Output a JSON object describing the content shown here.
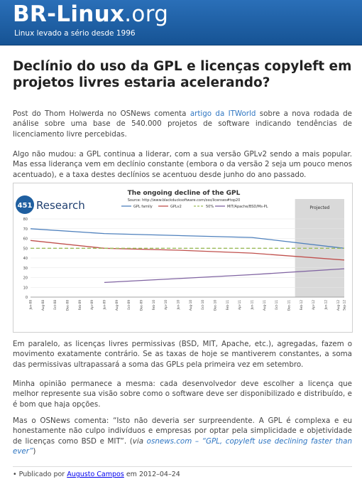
{
  "header": {
    "logo_name": "BR-Linux",
    "logo_tld": ".org",
    "tagline": "Linux levado a sério desde 1996"
  },
  "post": {
    "title": "Declínio do uso da GPL e licenças copyleft em projetos livres estaria acelerando?",
    "p1_a": "Post do Thom Holwerda no OSNews comenta ",
    "p1_link": "artigo da ITWorld",
    "p1_b": " sobre a nova rodada de análise sobre uma base de 540.000 projetos de software indicando tendências de licenciamento livre percebidas.",
    "p2": "Algo não mudou: a GPL continua a liderar, com a sua versão GPLv2 sendo a mais popular. Mas essa liderança vem em declínio constante (embora o da versão 2 seja um pouco menos acentuado), e a taxa destes declínios se acentuou desde junho do ano passado.",
    "p3": "Em paralelo, as licenças livres permissivas (BSD, MIT, Apache, etc.), agregadas, fazem o movimento exatamente contrário. Se as taxas de hoje se mantiverem constantes, a soma das permissivas ultrapassará a soma das GPLs pela primeira vez em setembro.",
    "p4": "Minha opinião permanece a mesma: cada desenvolvedor deve escolher a licença que melhor represente sua visão sobre como o software deve ser disponibilizado e distribuído, e é bom que haja opções.",
    "p5_a": "Mas o OSNews comenta: “Isto não deveria ser surpreendente. A GPL é complexa e eu honestamente não culpo indivíduos e empresas por optar pela simplicidade e objetividade de licenças como BSD e MIT”. (",
    "p5_via": "via",
    "p5_space": " ",
    "p5_link": "osnews.com – “GPL, copyleft use declining faster than ever”",
    "p5_b": ")"
  },
  "footer": {
    "bullet": "•",
    "prefix": "Publicado por ",
    "author": "Augusto Campos",
    "middle": " em ",
    "date": "2012–04–24"
  },
  "chart_data": {
    "type": "line",
    "brand_number": "451",
    "brand_name": "Research",
    "title": "The ongoing decline of the GPL",
    "subtitle": "Source: http://www.blackducksoftware.com/oss/licenses#top20",
    "projected_label": "Projected",
    "x": [
      "Jun-08",
      "Jul-08",
      "Aug-08",
      "Sep-08",
      "Oct-08",
      "Nov-08",
      "Dec-08",
      "Jan-09",
      "Feb-09",
      "Mar-09",
      "Apr-09",
      "May-09",
      "Jun-09",
      "Jul-09",
      "Aug-09",
      "Sep-09",
      "Oct-09",
      "Nov-09",
      "Dec-09",
      "Jan-10",
      "Feb-10",
      "Mar-10",
      "Apr-10",
      "May-10",
      "Jun-10",
      "Jul-10",
      "Aug-10",
      "Sep-10",
      "Oct-10",
      "Nov-10",
      "Dec-10",
      "Jan-11",
      "Feb-11",
      "Mar-11",
      "Apr-11",
      "May-11",
      "Jun-11",
      "Jul-11",
      "Aug-11",
      "Sep-11",
      "Oct-11",
      "Nov-11",
      "Dec-11",
      "Jan-12",
      "Feb-12",
      "Mar-12",
      "Apr-12",
      "May-12",
      "Jun-12",
      "Jul-12",
      "Aug-12",
      "Sep-12"
    ],
    "x_ticks": [
      "Jun-08",
      "Aug-08",
      "Oct-08",
      "Dec-08",
      "Feb-09",
      "Apr-09",
      "Jun-09",
      "Aug-09",
      "Oct-09",
      "Dec-09",
      "Feb-10",
      "Apr-10",
      "Jun-10",
      "Aug-10",
      "Oct-10",
      "Dec-10",
      "Feb-11",
      "Apr-11",
      "Jun-11",
      "Aug-11",
      "Oct-11",
      "Dec-11",
      "Feb-12",
      "Apr-12",
      "Jun-12",
      "Aug-12",
      "Sep-12"
    ],
    "projected_from": "Jan-12",
    "ylim": [
      0,
      80
    ],
    "yticks": [
      0,
      10,
      20,
      30,
      40,
      50,
      60,
      70,
      80
    ],
    "legend_position": "top",
    "grid": true,
    "series": [
      {
        "name": "GPL family",
        "color": "#4f81bd",
        "dash": "",
        "points": [
          [
            "Jun-08",
            70
          ],
          [
            "Jun-09",
            65
          ],
          [
            "Jun-10",
            63
          ],
          [
            "Jun-11",
            61
          ],
          [
            "Sep-12",
            50
          ]
        ]
      },
      {
        "name": "GPLv2",
        "color": "#c0504d",
        "dash": "",
        "points": [
          [
            "Jun-08",
            58
          ],
          [
            "Jun-09",
            50
          ],
          [
            "Jun-10",
            48
          ],
          [
            "Jun-11",
            45
          ],
          [
            "Sep-12",
            38
          ]
        ]
      },
      {
        "name": "50%",
        "color": "#9bbb59",
        "dash": "5,3",
        "points": [
          [
            "Jun-08",
            50
          ],
          [
            "Sep-12",
            50
          ]
        ]
      },
      {
        "name": "MIT/Apache/BSD/Ms-PL",
        "color": "#8064a2",
        "dash": "",
        "points": [
          [
            "Jun-09",
            15
          ],
          [
            "Jun-10",
            19
          ],
          [
            "Jun-11",
            23
          ],
          [
            "Sep-12",
            29
          ]
        ]
      }
    ]
  }
}
